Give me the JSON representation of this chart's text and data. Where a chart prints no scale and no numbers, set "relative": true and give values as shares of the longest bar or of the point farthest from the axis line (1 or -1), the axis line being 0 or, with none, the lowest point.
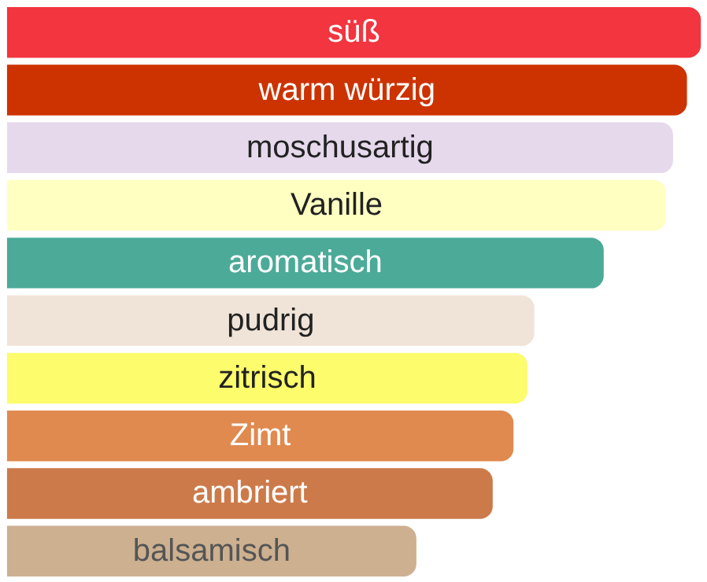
{
  "chart_data": {
    "type": "bar",
    "orientation": "horizontal",
    "relative": true,
    "categories": [
      "süß",
      "warm würzig",
      "moschusartig",
      "Vanille",
      "aromatisch",
      "pudrig",
      "zitrisch",
      "Zimt",
      "ambriert",
      "balsamisch"
    ],
    "values": [
      1,
      0.98,
      0.96,
      0.95,
      0.86,
      0.76,
      0.75,
      0.73,
      0.7,
      0.59
    ],
    "colors": [
      "#f2353f",
      "#cc3300",
      "#e6d9ec",
      "#ffffc2",
      "#4caa98",
      "#f0e4d8",
      "#fcfc6c",
      "#e08a50",
      "#cc7a4a",
      "#cdb090"
    ]
  }
}
